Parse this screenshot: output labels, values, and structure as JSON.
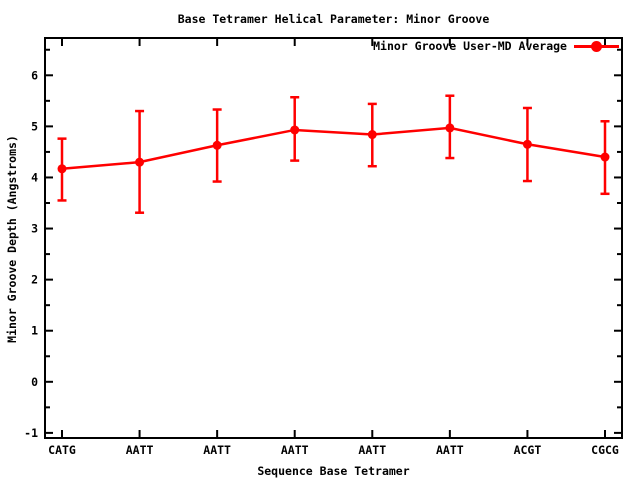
{
  "chart_data": {
    "type": "line",
    "title": "Base Tetramer Helical Parameter: Minor Groove",
    "xlabel": "Sequence Base Tetramer",
    "ylabel": "Minor Groove Depth (Angstroms)",
    "categories": [
      "CATG",
      "AATT",
      "AATT",
      "AATT",
      "AATT",
      "AATT",
      "ACGT",
      "CGCG"
    ],
    "series": [
      {
        "name": "Minor Groove User-MD Average",
        "values": [
          4.17,
          4.3,
          4.63,
          4.93,
          4.84,
          4.97,
          4.65,
          4.4
        ],
        "error_upper": [
          4.76,
          5.3,
          5.33,
          5.57,
          5.44,
          5.6,
          5.36,
          5.1
        ],
        "error_lower": [
          3.55,
          3.31,
          3.92,
          4.33,
          4.22,
          4.38,
          3.93,
          3.68
        ],
        "color": "#ff0000",
        "marker": "filled-circle"
      }
    ],
    "ylim": [
      -1.1,
      6.73
    ],
    "yticks": [
      -1,
      0,
      1,
      2,
      3,
      4,
      5,
      6
    ],
    "minor_ytick_step": 0.5,
    "grid": false,
    "legend_position": "top-right-inside",
    "background": "#ffffff",
    "frame_color": "#000000"
  }
}
